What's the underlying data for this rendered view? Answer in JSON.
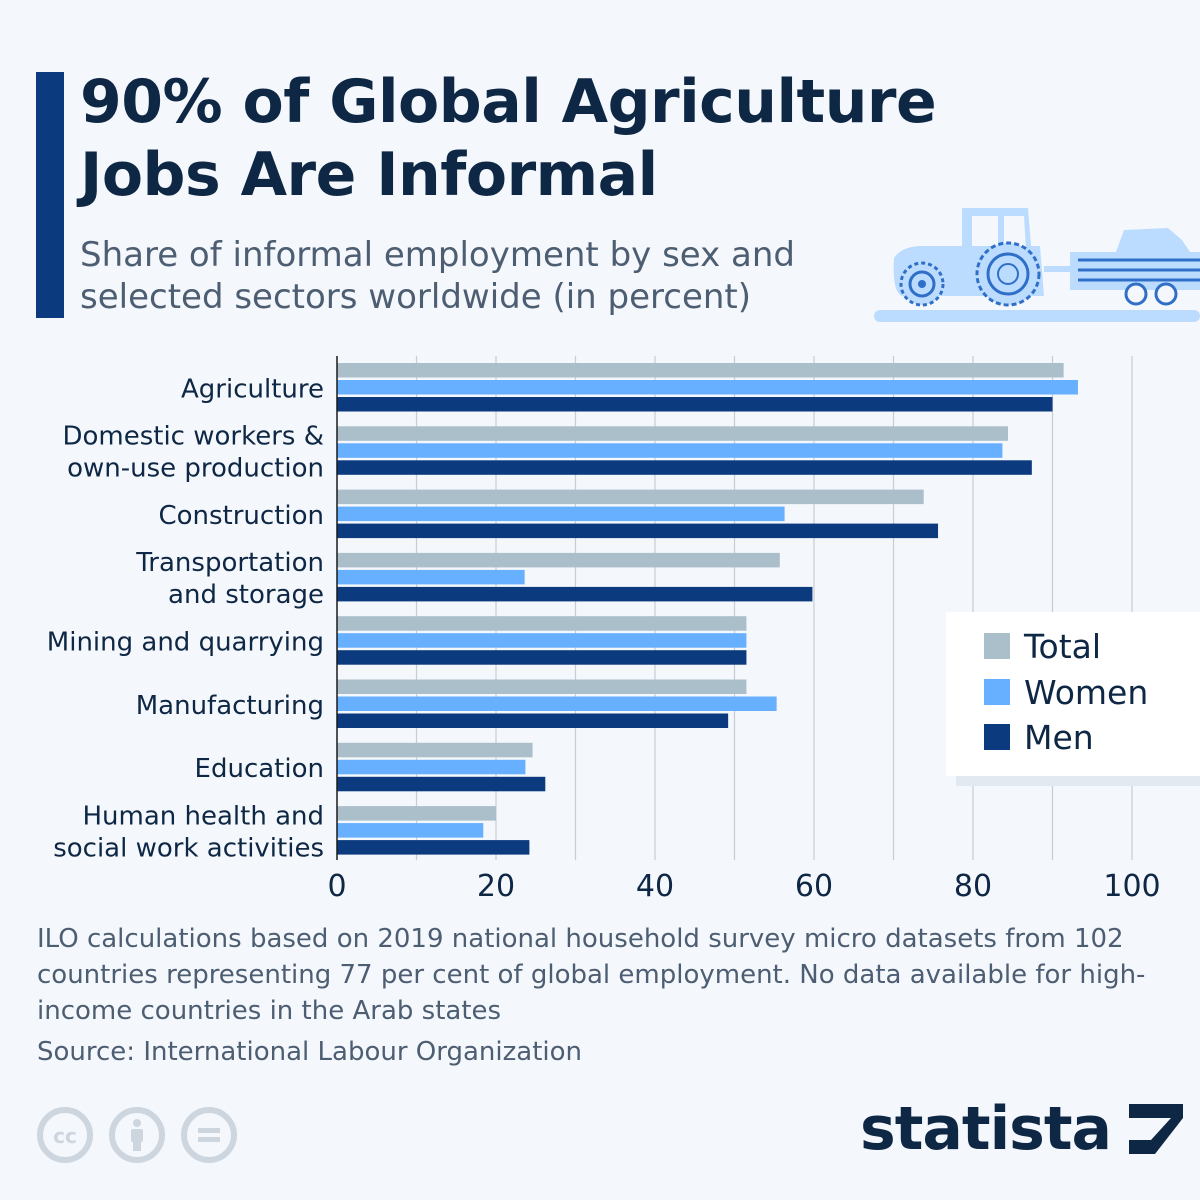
{
  "header": {
    "title": "90% of Global Agriculture Jobs Are Informal",
    "subtitle": "Share of informal employment by sex and selected sectors worldwide (in percent)"
  },
  "colors": {
    "total": "#abbfcb",
    "women": "#67afff",
    "men": "#0b3a7e",
    "accent": "#0b3a7e",
    "illustration": "#bcdcff",
    "illustration_stroke": "#2f6fc7"
  },
  "chart_data": {
    "type": "bar",
    "orientation": "horizontal",
    "categories": [
      "Agriculture",
      "Domestic workers & own-use production",
      "Construction",
      "Transportation and storage",
      "Mining and quarrying",
      "Manufacturing",
      "Education",
      "Human health and social work activities"
    ],
    "category_label_lines": [
      [
        "Agriculture"
      ],
      [
        "Domestic workers &",
        "own-use production"
      ],
      [
        "Construction"
      ],
      [
        "Transportation",
        "and storage"
      ],
      [
        "Mining and quarrying"
      ],
      [
        "Manufacturing"
      ],
      [
        "Education"
      ],
      [
        "Human health and",
        "social work activities"
      ]
    ],
    "series": [
      {
        "name": "Total",
        "values": [
          91.4,
          84.4,
          73.8,
          55.7,
          51.5,
          51.5,
          24.6,
          20.0
        ]
      },
      {
        "name": "Women",
        "values": [
          93.2,
          83.7,
          56.3,
          23.6,
          51.5,
          55.3,
          23.7,
          18.4
        ]
      },
      {
        "name": "Men",
        "values": [
          90.0,
          87.4,
          75.6,
          59.8,
          51.5,
          49.2,
          26.2,
          24.2
        ]
      }
    ],
    "xlim": [
      0,
      100
    ],
    "xticks": [
      0,
      20,
      40,
      60,
      80,
      100
    ],
    "grid": "vertical every 10",
    "legend_position": "right"
  },
  "legend": {
    "items": [
      {
        "label": "Total"
      },
      {
        "label": "Women"
      },
      {
        "label": "Men"
      }
    ]
  },
  "footer": {
    "note": "ILO calculations based on 2019 national household survey micro datasets from 102 countries representing 77 per cent of global employment. No data available for high-income countries in the Arab states",
    "source": "Source: International Labour Organization",
    "brand": "statista"
  }
}
